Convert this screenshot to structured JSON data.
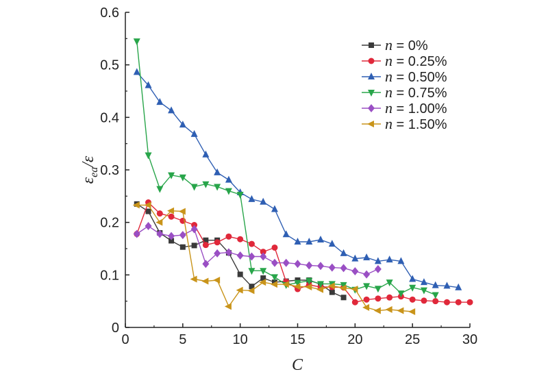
{
  "chart_data": {
    "type": "line",
    "xlabel": "C",
    "ylabel": "ε_ea/ε",
    "xlim": [
      0,
      30
    ],
    "ylim": [
      0,
      0.6
    ],
    "xticks": [
      0,
      5,
      10,
      15,
      20,
      25,
      30
    ],
    "yticks": [
      0,
      0.1,
      0.2,
      0.3,
      0.4,
      0.5,
      0.6
    ],
    "legend_position": "top-right",
    "series": [
      {
        "name": "n = 0%",
        "color": "#3a3a3a",
        "marker": "square",
        "x": [
          1,
          2,
          3,
          4,
          5,
          6,
          7,
          8,
          9,
          10,
          11,
          12,
          13,
          14,
          15,
          16,
          17,
          18,
          19
        ],
        "y": [
          0.235,
          0.221,
          0.18,
          0.165,
          0.153,
          0.156,
          0.166,
          0.166,
          0.142,
          0.101,
          0.078,
          0.094,
          0.086,
          0.088,
          0.09,
          0.09,
          0.082,
          0.067,
          0.057
        ]
      },
      {
        "name": "n = 0.25%",
        "color": "#e0283a",
        "marker": "circle",
        "x": [
          1,
          2,
          3,
          4,
          5,
          6,
          7,
          8,
          9,
          10,
          11,
          12,
          13,
          14,
          15,
          16,
          17,
          18,
          19,
          20,
          21,
          22,
          23,
          24,
          25,
          26,
          27,
          28,
          29,
          30
        ],
        "y": [
          0.178,
          0.238,
          0.217,
          0.211,
          0.203,
          0.195,
          0.157,
          0.162,
          0.173,
          0.168,
          0.159,
          0.144,
          0.152,
          0.087,
          0.073,
          0.081,
          0.077,
          0.077,
          0.076,
          0.048,
          0.053,
          0.055,
          0.057,
          0.059,
          0.053,
          0.051,
          0.05,
          0.048,
          0.048,
          0.048
        ]
      },
      {
        "name": "n = 0.50%",
        "color": "#2f5fb3",
        "marker": "triangle-up",
        "x": [
          1,
          2,
          3,
          4,
          5,
          6,
          7,
          8,
          9,
          10,
          11,
          12,
          13,
          14,
          15,
          16,
          17,
          18,
          19,
          20,
          21,
          22,
          23,
          24,
          25,
          26,
          27,
          28,
          29
        ],
        "y": [
          0.486,
          0.461,
          0.429,
          0.413,
          0.386,
          0.368,
          0.329,
          0.295,
          0.281,
          0.257,
          0.244,
          0.239,
          0.225,
          0.177,
          0.163,
          0.163,
          0.167,
          0.159,
          0.141,
          0.131,
          0.133,
          0.126,
          0.129,
          0.126,
          0.092,
          0.086,
          0.08,
          0.079,
          0.076
        ]
      },
      {
        "name": "n = 0.75%",
        "color": "#28a54a",
        "marker": "triangle-down",
        "x": [
          1,
          2,
          3,
          4,
          5,
          6,
          7,
          8,
          9,
          10,
          11,
          12,
          13,
          14,
          15,
          16,
          17,
          18,
          19,
          20,
          21,
          22,
          23,
          24,
          25,
          26,
          27
        ],
        "y": [
          0.545,
          0.328,
          0.264,
          0.29,
          0.286,
          0.268,
          0.273,
          0.268,
          0.26,
          0.253,
          0.108,
          0.108,
          0.096,
          0.081,
          0.085,
          0.089,
          0.083,
          0.083,
          0.081,
          0.072,
          0.079,
          0.074,
          0.086,
          0.065,
          0.076,
          0.071,
          0.062
        ]
      },
      {
        "name": "n = 1.00%",
        "color": "#9a4fc4",
        "marker": "diamond",
        "x": [
          1,
          2,
          3,
          4,
          5,
          6,
          7,
          8,
          9,
          10,
          11,
          12,
          13,
          14,
          15,
          16,
          17,
          18,
          19,
          20,
          21,
          22
        ],
        "y": [
          0.178,
          0.193,
          0.178,
          0.174,
          0.176,
          0.187,
          0.121,
          0.141,
          0.143,
          0.137,
          0.135,
          0.135,
          0.123,
          0.123,
          0.121,
          0.118,
          0.117,
          0.114,
          0.113,
          0.107,
          0.101,
          0.111
        ]
      },
      {
        "name": "n = 1.50%",
        "color": "#c9941a",
        "marker": "triangle-left",
        "x": [
          1,
          2,
          3,
          4,
          5,
          6,
          7,
          8,
          9,
          10,
          11,
          12,
          13,
          14,
          15,
          16,
          17,
          18,
          19,
          20,
          21,
          22,
          23,
          24,
          25
        ],
        "y": [
          0.233,
          0.233,
          0.2,
          0.222,
          0.221,
          0.092,
          0.088,
          0.09,
          0.04,
          0.071,
          0.07,
          0.086,
          0.082,
          0.082,
          0.078,
          0.077,
          0.072,
          0.079,
          0.075,
          0.073,
          0.038,
          0.032,
          0.034,
          0.032,
          0.03
        ]
      }
    ]
  }
}
